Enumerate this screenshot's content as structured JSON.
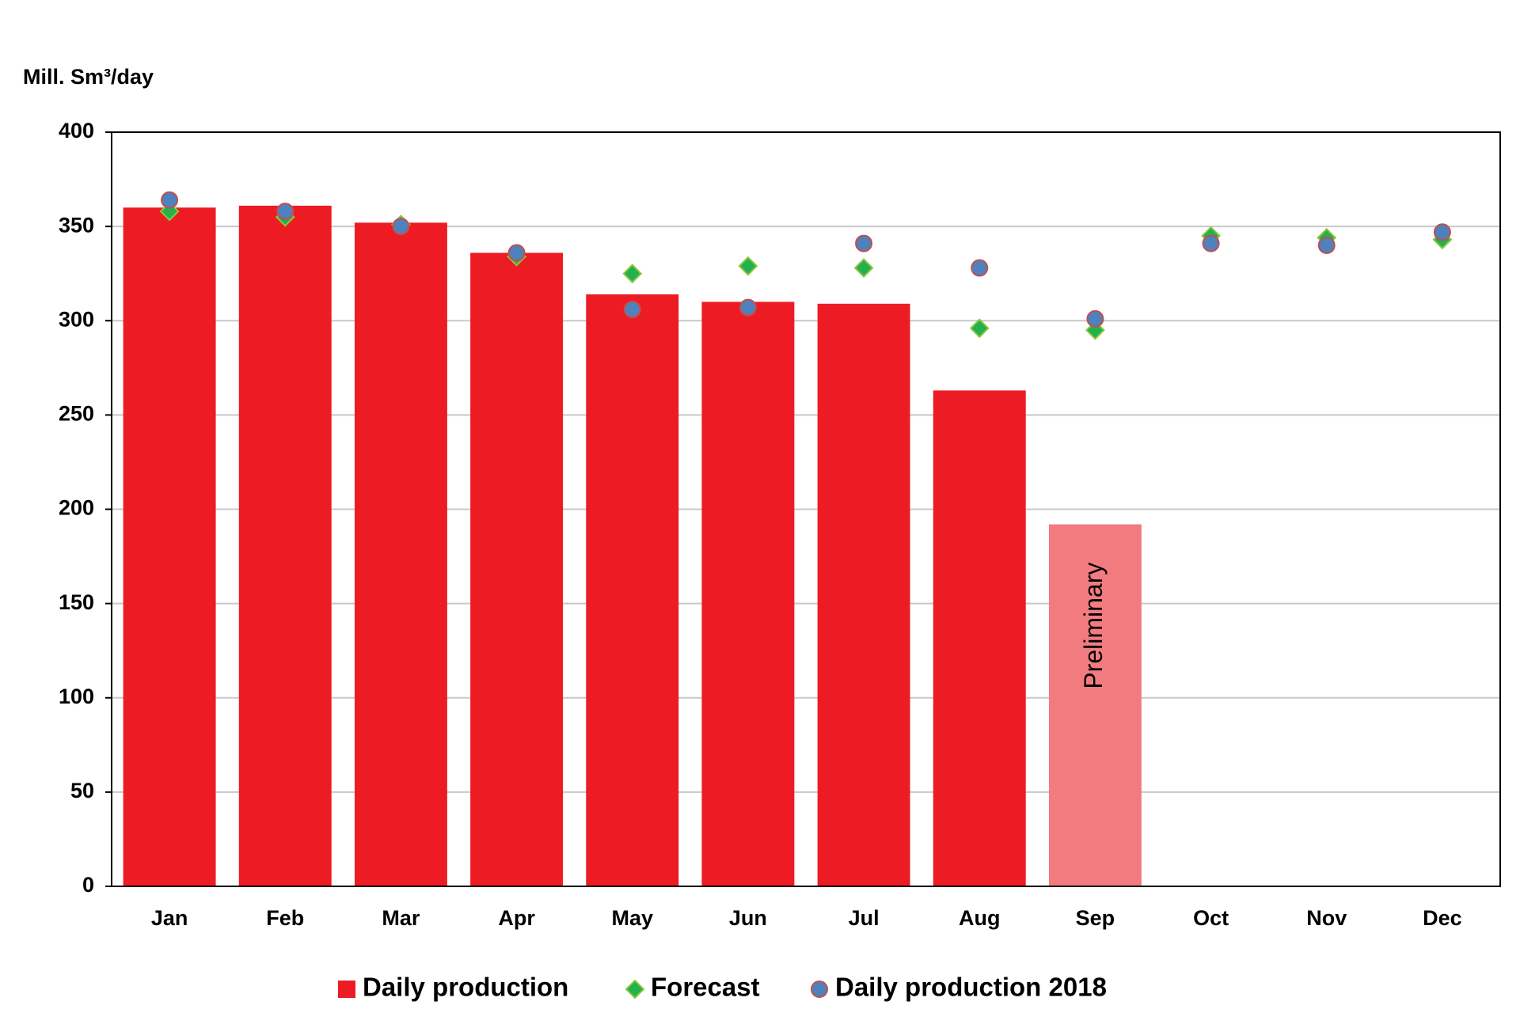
{
  "chart_data": {
    "type": "bar",
    "y_label": "Mill. Sm³/day",
    "categories": [
      "Jan",
      "Feb",
      "Mar",
      "Apr",
      "May",
      "Jun",
      "Jul",
      "Aug",
      "Sep",
      "Oct",
      "Nov",
      "Dec"
    ],
    "series": [
      {
        "name": "Daily production",
        "type": "bar",
        "color": "#ed1c24",
        "values": [
          360,
          361,
          352,
          336,
          314,
          310,
          309,
          263,
          192,
          null,
          null,
          null
        ]
      },
      {
        "name": "Forecast",
        "type": "diamond",
        "color": "#22b14c",
        "values": [
          358,
          355,
          351,
          334,
          325,
          329,
          328,
          296,
          295,
          345,
          344,
          343
        ]
      },
      {
        "name": "Daily production 2018",
        "type": "circle",
        "color": "#4f81bd",
        "values": [
          364,
          358,
          350,
          336,
          306,
          307,
          341,
          328,
          301,
          341,
          340,
          347
        ]
      }
    ],
    "annotations": [
      {
        "text": "Preliminary",
        "x": "Sep",
        "color": "#f27b80"
      }
    ],
    "ylim": [
      0,
      400
    ],
    "yticks": [
      0,
      50,
      100,
      150,
      200,
      250,
      300,
      350,
      400
    ],
    "grid": true
  }
}
